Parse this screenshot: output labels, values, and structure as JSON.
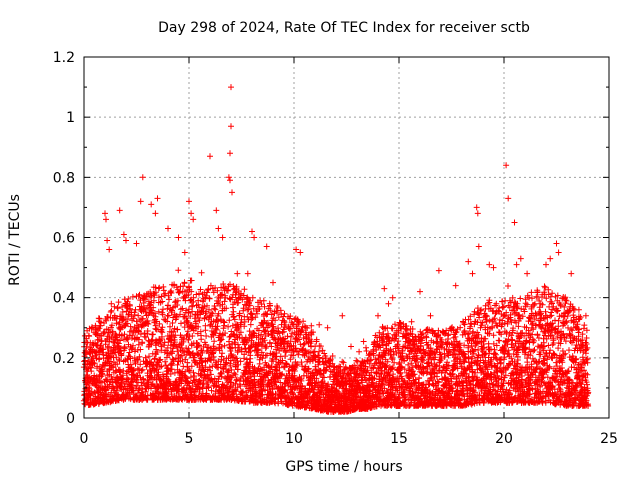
{
  "chart_data": {
    "type": "scatter",
    "title": "Day 298 of 2024, Rate Of TEC Index for receiver sctb",
    "xlabel": "GPS time / hours",
    "ylabel": "ROTI / TECUs",
    "xlim": [
      0,
      25
    ],
    "ylim": [
      0,
      1.2
    ],
    "xticks": [
      "0",
      "5",
      "10",
      "15",
      "20",
      "25"
    ],
    "yticks": [
      "0",
      "0.2",
      "0.4",
      "0.6",
      "0.8",
      "1",
      "1.2"
    ],
    "grid": true,
    "marker": "plus",
    "color": "#ff0000",
    "series": [
      {
        "points": [
          [
            0.1,
            0.22
          ],
          [
            0.3,
            0.25
          ],
          [
            0.6,
            0.28
          ],
          [
            1.0,
            0.68
          ],
          [
            1.05,
            0.66
          ],
          [
            1.1,
            0.59
          ],
          [
            1.2,
            0.56
          ],
          [
            1.3,
            0.38
          ],
          [
            1.7,
            0.69
          ],
          [
            1.9,
            0.61
          ],
          [
            2.0,
            0.59
          ],
          [
            2.5,
            0.58
          ],
          [
            2.7,
            0.72
          ],
          [
            2.8,
            0.8
          ],
          [
            3.2,
            0.71
          ],
          [
            3.5,
            0.73
          ],
          [
            3.4,
            0.68
          ],
          [
            4.0,
            0.63
          ],
          [
            4.5,
            0.6
          ],
          [
            4.8,
            0.55
          ],
          [
            5.0,
            0.72
          ],
          [
            5.1,
            0.68
          ],
          [
            5.2,
            0.66
          ],
          [
            6.0,
            0.87
          ],
          [
            6.3,
            0.69
          ],
          [
            6.4,
            0.63
          ],
          [
            6.6,
            0.6
          ],
          [
            6.9,
            0.8
          ],
          [
            6.95,
            0.79
          ],
          [
            7.0,
            1.1
          ],
          [
            7.0,
            0.97
          ],
          [
            6.95,
            0.88
          ],
          [
            7.05,
            0.75
          ],
          [
            7.3,
            0.48
          ],
          [
            7.8,
            0.48
          ],
          [
            8.0,
            0.62
          ],
          [
            8.1,
            0.6
          ],
          [
            8.7,
            0.57
          ],
          [
            9.0,
            0.45
          ],
          [
            10.1,
            0.56
          ],
          [
            10.3,
            0.55
          ],
          [
            11.2,
            0.31
          ],
          [
            11.6,
            0.3
          ],
          [
            12.3,
            0.34
          ],
          [
            13.1,
            0.22
          ],
          [
            14.0,
            0.34
          ],
          [
            14.3,
            0.43
          ],
          [
            14.5,
            0.38
          ],
          [
            14.7,
            0.4
          ],
          [
            15.6,
            0.32
          ],
          [
            16.0,
            0.42
          ],
          [
            16.5,
            0.34
          ],
          [
            16.9,
            0.49
          ],
          [
            17.7,
            0.44
          ],
          [
            18.3,
            0.52
          ],
          [
            18.5,
            0.48
          ],
          [
            18.7,
            0.7
          ],
          [
            18.75,
            0.68
          ],
          [
            18.8,
            0.57
          ],
          [
            19.3,
            0.51
          ],
          [
            19.5,
            0.5
          ],
          [
            20.1,
            0.84
          ],
          [
            20.2,
            0.73
          ],
          [
            20.5,
            0.65
          ],
          [
            20.6,
            0.51
          ],
          [
            20.8,
            0.53
          ],
          [
            21.1,
            0.48
          ],
          [
            22.0,
            0.51
          ],
          [
            22.2,
            0.53
          ],
          [
            22.5,
            0.58
          ],
          [
            22.6,
            0.55
          ],
          [
            23.2,
            0.48
          ],
          [
            23.6,
            0.33
          ],
          [
            23.9,
            0.34
          ]
        ]
      }
    ],
    "envelope": {
      "x": [
        0,
        1,
        2,
        3,
        4,
        5,
        6,
        7,
        8,
        9,
        10,
        11,
        11.5,
        12,
        12.5,
        13,
        13.5,
        14,
        15,
        16,
        17,
        18,
        19,
        20,
        21,
        22,
        23,
        24
      ],
      "upper": [
        0.28,
        0.36,
        0.4,
        0.43,
        0.44,
        0.46,
        0.44,
        0.45,
        0.42,
        0.38,
        0.34,
        0.28,
        0.21,
        0.18,
        0.17,
        0.18,
        0.2,
        0.3,
        0.32,
        0.3,
        0.29,
        0.32,
        0.38,
        0.4,
        0.42,
        0.44,
        0.4,
        0.3
      ],
      "lower": [
        0.04,
        0.05,
        0.06,
        0.06,
        0.06,
        0.06,
        0.06,
        0.06,
        0.05,
        0.05,
        0.04,
        0.03,
        0.02,
        0.02,
        0.02,
        0.03,
        0.03,
        0.04,
        0.04,
        0.04,
        0.04,
        0.04,
        0.05,
        0.05,
        0.05,
        0.05,
        0.04,
        0.04
      ]
    }
  }
}
